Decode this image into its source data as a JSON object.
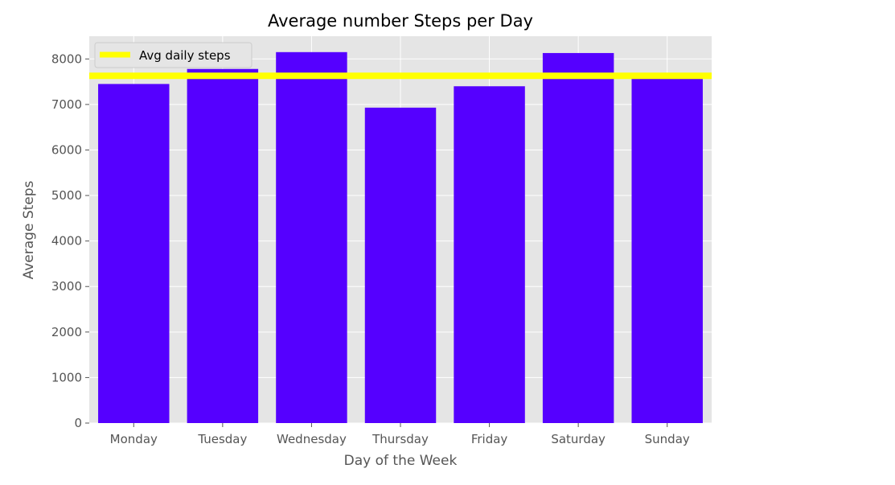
{
  "chart_data": {
    "type": "bar",
    "title": "Average number Steps per Day",
    "xlabel": "Day of the Week",
    "ylabel": "Average Steps",
    "categories": [
      "Monday",
      "Tuesday",
      "Wednesday",
      "Thursday",
      "Friday",
      "Saturday",
      "Sunday"
    ],
    "values": [
      7450,
      7780,
      8150,
      6930,
      7400,
      8130,
      7600
    ],
    "ylim": [
      0,
      8500
    ],
    "yticks": [
      0,
      1000,
      2000,
      3000,
      4000,
      5000,
      6000,
      7000,
      8000
    ],
    "grid": true,
    "bar_color": "#5500ff",
    "reference_line": {
      "label": "Avg daily steps",
      "value": 7630,
      "color": "#ffff00"
    },
    "legend": {
      "position": "top-left",
      "entries": [
        "Avg daily steps"
      ]
    },
    "background_color": "#e5e5e5"
  }
}
